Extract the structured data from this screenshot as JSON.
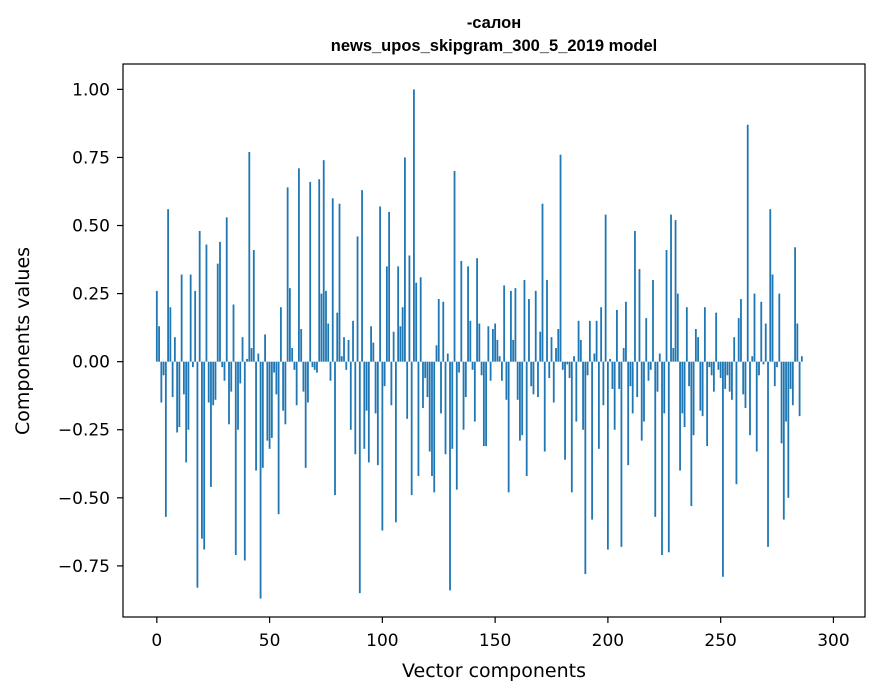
{
  "chart_data": {
    "type": "bar",
    "title_line1": "-салон",
    "title_line2": "news_upos_skipgram_300_5_2019 model",
    "xlabel": "Vector components",
    "ylabel": "Components values",
    "xlim": [
      -15,
      314
    ],
    "ylim": [
      -0.9377,
      1.0932
    ],
    "xticks": [
      0,
      50,
      100,
      150,
      200,
      250,
      300
    ],
    "xtick_labels": [
      "0",
      "50",
      "100",
      "150",
      "200",
      "250",
      "300"
    ],
    "yticks": [
      -0.75,
      -0.5,
      -0.25,
      0,
      0.25,
      0.5,
      0.75,
      1.0
    ],
    "ytick_labels": [
      "−0.75",
      "−0.50",
      "−0.25",
      "0.00",
      "0.25",
      "0.50",
      "0.75",
      "1.00"
    ],
    "bar_color": "#1f77b4",
    "bar_width": 0.8,
    "values": [
      0.26,
      0.13,
      -0.15,
      -0.05,
      -0.57,
      0.56,
      0.2,
      -0.13,
      0.09,
      -0.26,
      -0.24,
      0.32,
      -0.12,
      -0.37,
      -0.25,
      0.32,
      -0.02,
      0.26,
      -0.83,
      0.48,
      -0.65,
      -0.69,
      0.43,
      -0.15,
      -0.46,
      -0.16,
      -0.14,
      0.36,
      0.44,
      -0.02,
      -0.07,
      0.53,
      -0.23,
      -0.11,
      0.21,
      -0.71,
      -0.25,
      -0.08,
      0.09,
      -0.73,
      0.01,
      0.77,
      0.05,
      0.41,
      -0.4,
      0.03,
      -0.87,
      -0.39,
      0.1,
      -0.29,
      -0.32,
      -0.28,
      -0.04,
      -0.12,
      -0.56,
      0.2,
      -0.18,
      -0.23,
      0.64,
      0.27,
      0.05,
      -0.03,
      -0.16,
      0.71,
      0.12,
      -0.11,
      -0.39,
      -0.15,
      0.66,
      -0.02,
      -0.03,
      -0.04,
      0.67,
      0.25,
      0.74,
      0.26,
      0.14,
      -0.07,
      0.6,
      -0.49,
      0.18,
      0.58,
      0.02,
      0.09,
      -0.03,
      0.08,
      -0.25,
      0.15,
      -0.34,
      0.46,
      -0.85,
      0.63,
      -0.32,
      -0.18,
      -0.37,
      0.13,
      0.07,
      -0.19,
      -0.38,
      0.57,
      -0.62,
      -0.09,
      0.35,
      0.55,
      -0.16,
      0.11,
      -0.59,
      0.35,
      0.13,
      0.2,
      0.75,
      -0.21,
      0.39,
      -0.49,
      1.0,
      0.29,
      -0.42,
      0.31,
      -0.17,
      -0.06,
      -0.13,
      -0.33,
      -0.42,
      -0.48,
      0.06,
      0.23,
      -0.19,
      0.22,
      -0.34,
      0.03,
      -0.84,
      -0.32,
      0.7,
      -0.47,
      -0.04,
      0.37,
      -0.25,
      -0.13,
      0.35,
      0.15,
      -0.03,
      -0.22,
      0.38,
      0.14,
      -0.05,
      -0.31,
      -0.31,
      0.13,
      -0.07,
      0.12,
      0.14,
      0.08,
      0.02,
      -0.07,
      0.28,
      -0.14,
      -0.48,
      0.26,
      0.08,
      0.27,
      -0.14,
      -0.29,
      -0.27,
      0.3,
      -0.42,
      0.23,
      -0.09,
      -0.12,
      0.26,
      -0.13,
      0.11,
      0.58,
      -0.33,
      0.3,
      -0.06,
      0.09,
      -0.15,
      0.05,
      0.12,
      0.76,
      -0.03,
      -0.36,
      -0.01,
      -0.06,
      -0.48,
      0.02,
      -0.22,
      0.15,
      0.08,
      -0.25,
      -0.78,
      -0.05,
      0.15,
      -0.58,
      0.03,
      0.15,
      -0.32,
      0.2,
      -0.16,
      0.54,
      -0.69,
      0.01,
      -0.1,
      -0.25,
      0.19,
      -0.1,
      -0.68,
      0.05,
      0.22,
      -0.38,
      -0.09,
      -0.19,
      0.48,
      -0.13,
      0.34,
      -0.29,
      -0.22,
      0.16,
      -0.07,
      -0.03,
      0.3,
      -0.57,
      -0.11,
      0.03,
      -0.71,
      -0.19,
      0.41,
      -0.7,
      0.54,
      0.05,
      0.52,
      0.25,
      -0.4,
      -0.19,
      -0.24,
      0.2,
      -0.09,
      -0.53,
      -0.27,
      0.12,
      0.09,
      -0.18,
      -0.2,
      0.2,
      -0.31,
      -0.02,
      -0.05,
      -0.11,
      0.18,
      -0.03,
      -0.06,
      -0.79,
      -0.1,
      -0.05,
      -0.11,
      -0.14,
      0.09,
      -0.45,
      0.16,
      0.23,
      -0.12,
      -0.17,
      0.87,
      -0.27,
      0.02,
      0.25,
      -0.33,
      -0.05,
      0.22,
      -0.01,
      0.14,
      -0.68,
      0.56,
      0.32,
      -0.09,
      -0.02,
      0.25,
      -0.3,
      -0.58,
      -0.22,
      -0.5,
      -0.1,
      -0.16,
      0.42,
      0.14,
      -0.2,
      0.02
    ]
  }
}
